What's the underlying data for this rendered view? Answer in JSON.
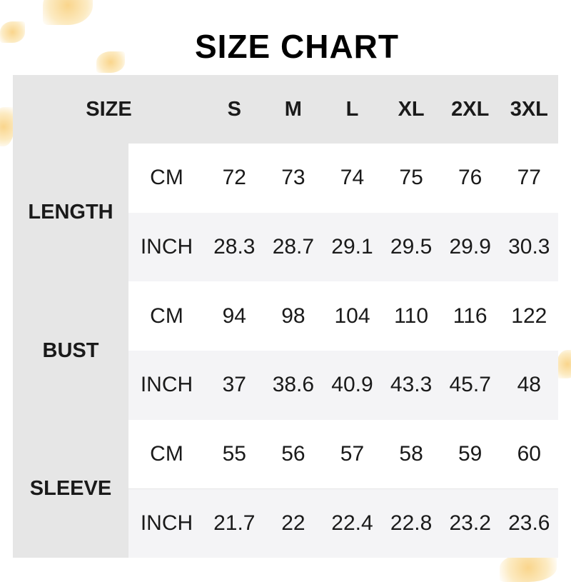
{
  "title": "SIZE CHART",
  "header": {
    "label": "SIZE",
    "sizes": [
      "S",
      "M",
      "L",
      "XL",
      "2XL",
      "3XL"
    ]
  },
  "groups": [
    {
      "name": "LENGTH",
      "rows": [
        {
          "unit": "CM",
          "values": [
            "72",
            "73",
            "74",
            "75",
            "76",
            "77"
          ]
        },
        {
          "unit": "INCH",
          "values": [
            "28.3",
            "28.7",
            "29.1",
            "29.5",
            "29.9",
            "30.3"
          ]
        }
      ]
    },
    {
      "name": "BUST",
      "rows": [
        {
          "unit": "CM",
          "values": [
            "94",
            "98",
            "104",
            "110",
            "116",
            "122"
          ]
        },
        {
          "unit": "INCH",
          "values": [
            "37",
            "38.6",
            "40.9",
            "43.3",
            "45.7",
            "48"
          ]
        }
      ]
    },
    {
      "name": "SLEEVE",
      "rows": [
        {
          "unit": "CM",
          "values": [
            "55",
            "56",
            "57",
            "58",
            "59",
            "60"
          ]
        },
        {
          "unit": "INCH",
          "values": [
            "21.7",
            "22",
            "22.4",
            "22.8",
            "23.2",
            "23.6"
          ]
        }
      ]
    }
  ],
  "colors": {
    "header_bg": "#e6e6e6",
    "alt_row_bg": "#f4f4f6",
    "decoration": "#f7c35a"
  }
}
